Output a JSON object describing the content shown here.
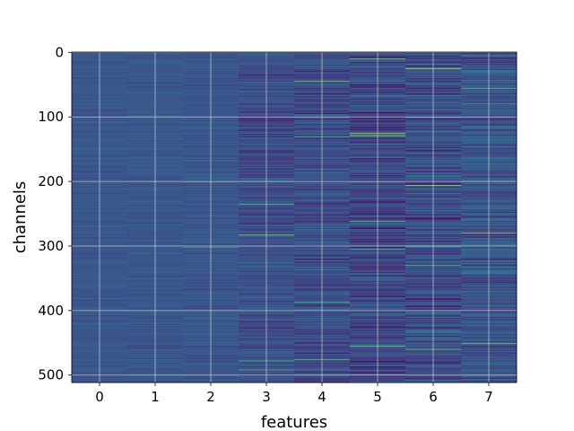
{
  "chart_data": {
    "type": "heatmap",
    "xlabel": "features",
    "ylabel": "channels",
    "x_ticks": [
      "0",
      "1",
      "2",
      "3",
      "4",
      "5",
      "6",
      "7"
    ],
    "y_ticks": [
      "0",
      "100",
      "200",
      "300",
      "400",
      "500"
    ],
    "x_range": [
      -0.5,
      7.5
    ],
    "y_range": [
      0,
      511
    ],
    "y_inverted": true,
    "n_channels": 512,
    "n_features": 8,
    "colormap": "viridis",
    "grid": true,
    "column_stats": [
      {
        "feature": 0,
        "mean": 0.27,
        "spread": 0.05
      },
      {
        "feature": 1,
        "mean": 0.27,
        "spread": 0.06
      },
      {
        "feature": 2,
        "mean": 0.27,
        "spread": 0.07
      },
      {
        "feature": 3,
        "mean": 0.24,
        "spread": 0.13
      },
      {
        "feature": 4,
        "mean": 0.24,
        "spread": 0.16
      },
      {
        "feature": 5,
        "mean": 0.22,
        "spread": 0.19
      },
      {
        "feature": 6,
        "mean": 0.24,
        "spread": 0.18
      },
      {
        "feature": 7,
        "mean": 0.27,
        "spread": 0.17
      }
    ],
    "highlights": [
      {
        "feature": 2,
        "channel": 302,
        "value": 0.62
      },
      {
        "feature": 3,
        "channel": 283,
        "value": 0.82
      },
      {
        "feature": 3,
        "channel": 235,
        "value": 0.72
      },
      {
        "feature": 3,
        "channel": 478,
        "value": 0.68
      },
      {
        "feature": 3,
        "channel": 492,
        "value": 0.74
      },
      {
        "feature": 4,
        "channel": 45,
        "value": 0.8
      },
      {
        "feature": 4,
        "channel": 131,
        "value": 0.7
      },
      {
        "feature": 4,
        "channel": 387,
        "value": 0.66
      },
      {
        "feature": 4,
        "channel": 476,
        "value": 0.74
      },
      {
        "feature": 5,
        "channel": 10,
        "value": 0.78
      },
      {
        "feature": 5,
        "channel": 125,
        "value": 0.9
      },
      {
        "feature": 5,
        "channel": 129,
        "value": 0.88
      },
      {
        "feature": 5,
        "channel": 262,
        "value": 0.72
      },
      {
        "feature": 5,
        "channel": 305,
        "value": 0.7
      },
      {
        "feature": 5,
        "channel": 455,
        "value": 0.76
      },
      {
        "feature": 6,
        "channel": 25,
        "value": 0.92
      },
      {
        "feature": 6,
        "channel": 206,
        "value": 0.86
      },
      {
        "feature": 6,
        "channel": 300,
        "value": 0.74
      },
      {
        "feature": 6,
        "channel": 330,
        "value": 0.7
      },
      {
        "feature": 6,
        "channel": 460,
        "value": 0.8
      },
      {
        "feature": 7,
        "channel": 56,
        "value": 0.74
      },
      {
        "feature": 7,
        "channel": 80,
        "value": 0.7
      },
      {
        "feature": 7,
        "channel": 280,
        "value": 0.88
      },
      {
        "feature": 7,
        "channel": 451,
        "value": 0.76
      }
    ]
  }
}
